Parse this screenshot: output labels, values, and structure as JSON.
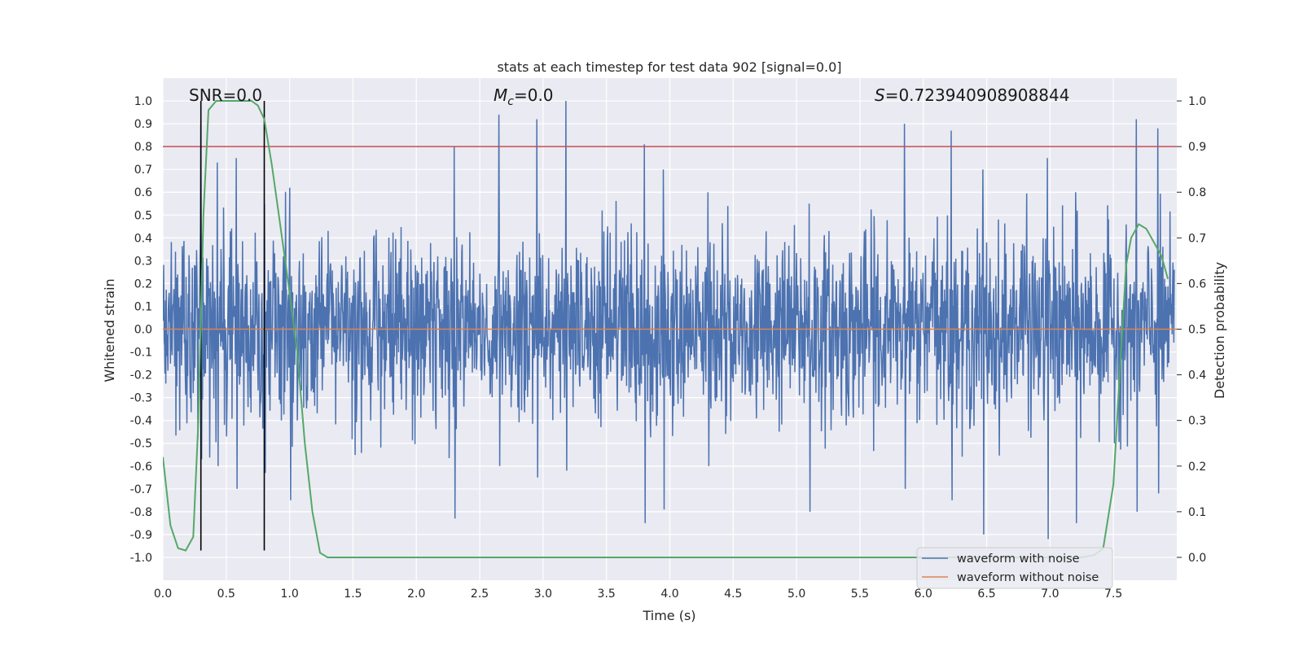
{
  "chart_data": {
    "type": "line",
    "title": "stats at each timestep for test data 902 [signal=0.0]",
    "xlabel": "Time (s)",
    "ylabel": "Whitened strain",
    "y2label": "Detection probability",
    "xlim": [
      0.0,
      8.0
    ],
    "ylim": [
      -1.1,
      1.1
    ],
    "y2lim": [
      -0.05,
      1.05
    ],
    "xticks": [
      "0.0",
      "0.5",
      "1.0",
      "1.5",
      "2.0",
      "2.5",
      "3.0",
      "3.5",
      "4.0",
      "4.5",
      "5.0",
      "5.5",
      "6.0",
      "6.5",
      "7.0",
      "7.5"
    ],
    "yticks": [
      "-1.0",
      "-0.9",
      "-0.8",
      "-0.7",
      "-0.6",
      "-0.5",
      "-0.4",
      "-0.3",
      "-0.2",
      "-0.1",
      "0.0",
      "0.1",
      "0.2",
      "0.3",
      "0.4",
      "0.5",
      "0.6",
      "0.7",
      "0.8",
      "0.9",
      "1.0"
    ],
    "y2ticks": [
      "0.0",
      "0.1",
      "0.2",
      "0.3",
      "0.4",
      "0.5",
      "0.6",
      "0.7",
      "0.8",
      "0.9",
      "1.0"
    ],
    "grid": true,
    "legend_position": "bottom-right",
    "annotations": {
      "snr": "SNR=0.0",
      "mc": "=0.0",
      "mc_symbol": "M",
      "mc_subscript": "c",
      "s": "=0.723940908908844",
      "s_symbol": "S"
    },
    "threshold_line": {
      "y2": 0.9,
      "color": "#c44e52"
    },
    "vertical_lines": [
      0.3,
      0.8
    ],
    "series": [
      {
        "name": "waveform with noise",
        "color": "#4c72b0",
        "description_note": "dense noise",
        "peaks": [
          [
            0.3,
            0.9,
            -0.57
          ],
          [
            0.43,
            0.73,
            -0.6
          ],
          [
            0.58,
            0.75,
            -0.7
          ],
          [
            0.8,
            0.55,
            -0.63
          ],
          [
            1.0,
            0.62,
            -0.75
          ],
          [
            2.3,
            0.8,
            -0.83
          ],
          [
            2.65,
            0.94,
            -0.6
          ],
          [
            2.95,
            0.92,
            -0.65
          ],
          [
            3.18,
            1.0,
            -0.62
          ],
          [
            3.8,
            0.81,
            -0.85
          ],
          [
            3.95,
            0.7,
            -0.79
          ],
          [
            4.3,
            0.6,
            -0.6
          ],
          [
            5.1,
            0.55,
            -0.8
          ],
          [
            5.85,
            0.9,
            -0.7
          ],
          [
            6.22,
            0.87,
            -0.75
          ],
          [
            6.47,
            0.7,
            -0.9
          ],
          [
            6.98,
            0.75,
            -0.92
          ],
          [
            7.2,
            0.6,
            -0.85
          ],
          [
            7.68,
            0.92,
            -0.8
          ],
          [
            7.85,
            0.88,
            -0.72
          ]
        ],
        "envelope": 0.5
      },
      {
        "name": "waveform without noise",
        "color": "#dd8452",
        "x": [
          0.0,
          8.0
        ],
        "y": [
          0.0,
          0.0
        ]
      },
      {
        "name": "",
        "color": "#55a868",
        "axis": "y2",
        "x": [
          0.0,
          0.06,
          0.12,
          0.18,
          0.24,
          0.28,
          0.32,
          0.36,
          0.42,
          0.5,
          0.6,
          0.7,
          0.75,
          0.8,
          0.86,
          0.92,
          1.0,
          1.06,
          1.12,
          1.18,
          1.24,
          1.3,
          1.4,
          2.0,
          3.0,
          4.0,
          5.0,
          6.0,
          6.5,
          7.0,
          7.25,
          7.35,
          7.42,
          7.5,
          7.56,
          7.6,
          7.64,
          7.7,
          7.76,
          7.82,
          7.88,
          7.93
        ],
        "y": [
          0.22,
          0.07,
          0.02,
          0.015,
          0.045,
          0.3,
          0.75,
          0.98,
          1.0,
          1.0,
          1.0,
          1.0,
          0.99,
          0.96,
          0.86,
          0.74,
          0.58,
          0.45,
          0.25,
          0.1,
          0.01,
          0.0,
          0.0,
          0.0,
          0.0,
          0.0,
          0.0,
          0.0,
          0.0,
          0.0,
          0.0,
          0.005,
          0.02,
          0.16,
          0.45,
          0.64,
          0.7,
          0.73,
          0.72,
          0.69,
          0.66,
          0.61
        ]
      }
    ]
  }
}
